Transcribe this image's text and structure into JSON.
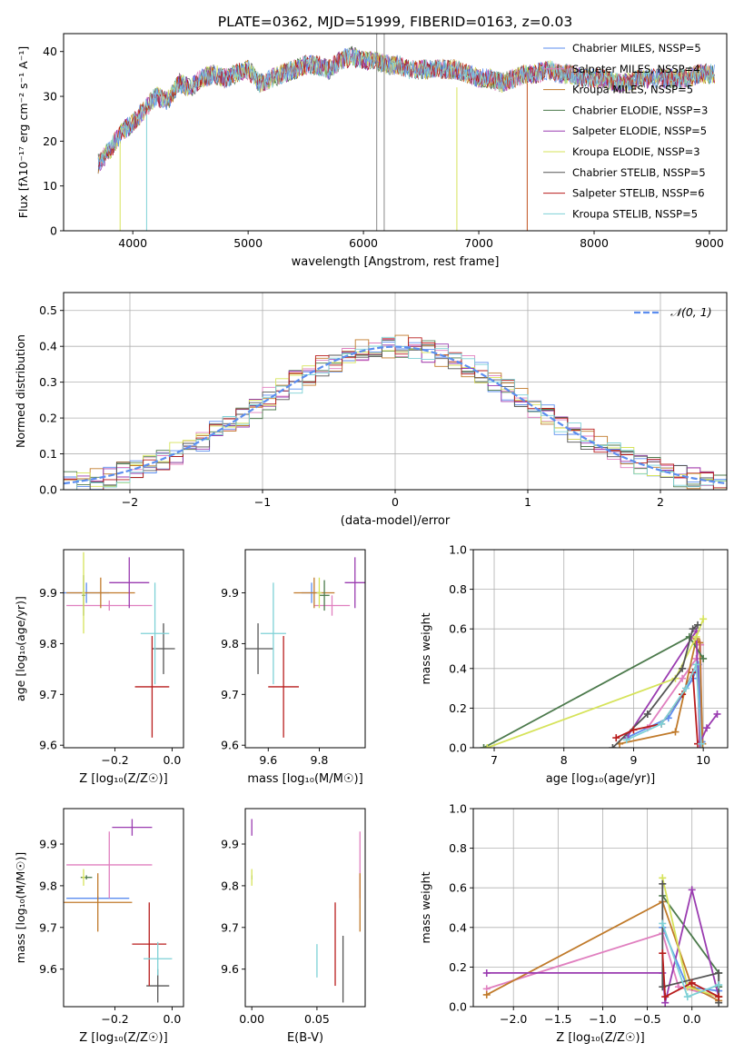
{
  "title": "PLATE=0362, MJD=51999, FIBERID=0163, z=0.03",
  "colors": [
    "#5b8def",
    "#e07fbf",
    "#c07a2a",
    "#4c7a4c",
    "#9a3bb0",
    "#d6e35a",
    "#555555",
    "#b81d1d",
    "#7ed1d6"
  ],
  "chart_data": [
    {
      "id": "spectrum",
      "type": "line",
      "xlabel": "wavelength [Angstrom, rest frame]",
      "ylabel": "Flux [fλ10⁻¹⁷ erg cm⁻² s⁻¹ A⁻¹]",
      "xlim": [
        3400,
        9150
      ],
      "ylim": [
        0,
        44
      ],
      "xticks": [
        4000,
        5000,
        6000,
        7000,
        8000,
        9000
      ],
      "yticks": [
        0,
        10,
        20,
        30,
        40
      ],
      "grid": false,
      "legend": "top-right",
      "legend_entries": [
        "Chabrier MILES, NSSP=5",
        "Salpeter MILES, NSSP=4",
        "Kroupa MILES, NSSP=5",
        "Chabrier ELODIE, NSSP=3",
        "Salpeter ELODIE, NSSP=5",
        "Kroupa ELODIE, NSSP=3",
        "Chabrier STELIB, NSSP=5",
        "Salpeter STELIB, NSSP=6",
        "Kroupa STELIB, NSSP=5"
      ],
      "x": [
        3700,
        3800,
        3900,
        4000,
        4100,
        4200,
        4300,
        4400,
        4500,
        4600,
        4700,
        4800,
        4900,
        5000,
        5100,
        5200,
        5300,
        5400,
        5500,
        5600,
        5700,
        5800,
        5900,
        6000,
        6100,
        6200,
        6300,
        6400,
        6500,
        6600,
        6700,
        6800,
        6900,
        7000,
        7100,
        7200,
        7300,
        7400,
        7500,
        7600,
        7700,
        7800,
        7900,
        8000,
        8100,
        8200,
        8300,
        8400,
        8500,
        8600,
        8700,
        8800,
        8900,
        9000,
        9050
      ],
      "y": [
        15,
        18,
        22,
        24,
        27,
        30,
        29,
        33,
        32,
        34,
        35,
        34,
        35,
        36,
        33,
        34,
        35,
        36,
        37,
        37,
        36,
        38,
        39,
        38,
        38,
        37,
        37,
        36,
        36,
        36,
        36,
        36,
        35,
        34,
        34,
        33,
        34,
        35,
        35,
        36,
        35,
        35,
        34,
        34,
        34,
        33,
        33,
        34,
        34,
        34,
        34,
        34,
        35,
        35,
        35
      ]
    },
    {
      "id": "residuals",
      "type": "bar",
      "xlabel": "(data-model)/error",
      "ylabel": "Normed distribution",
      "xlim": [
        -2.5,
        2.5
      ],
      "ylim": [
        0,
        0.55
      ],
      "xticks": [
        -2,
        -1,
        0,
        1,
        2
      ],
      "yticks": [
        0.0,
        0.1,
        0.2,
        0.3,
        0.4,
        0.5
      ],
      "grid": true,
      "legend": "top-right",
      "legend_entries": [
        "𝒩(0, 1)"
      ],
      "bin_width": 0.1,
      "reference_curve": "normal(0,1)"
    },
    {
      "id": "age-vs-z",
      "type": "scatter",
      "xlabel": "Z [log₁₀(Z/Z☉)]",
      "ylabel": "age  [log₁₀(age/yr)]",
      "xlim": [
        -0.38,
        0.04
      ],
      "ylim": [
        9.595,
        9.985
      ],
      "xticks": [
        -0.2,
        0.0
      ],
      "yticks": [
        9.6,
        9.7,
        9.8,
        9.9
      ],
      "grid": false,
      "points": [
        {
          "c": 0,
          "x": -0.3,
          "y": 9.9,
          "xerr": 0.08,
          "yerr": 0.02
        },
        {
          "c": 1,
          "x": -0.22,
          "y": 9.875,
          "xerr": 0.15,
          "yerr": 0.01
        },
        {
          "c": 2,
          "x": -0.25,
          "y": 9.9,
          "xerr": 0.12,
          "yerr": 0.03
        },
        {
          "c": 3,
          "x": -0.31,
          "y": 9.895,
          "xerr": 0.005,
          "yerr": 0.04
        },
        {
          "c": 4,
          "x": -0.15,
          "y": 9.92,
          "xerr": 0.07,
          "yerr": 0.05
        },
        {
          "c": 5,
          "x": -0.31,
          "y": 9.9,
          "xerr": 0.005,
          "yerr": 0.08
        },
        {
          "c": 6,
          "x": -0.03,
          "y": 9.79,
          "xerr": 0.04,
          "yerr": 0.05
        },
        {
          "c": 7,
          "x": -0.07,
          "y": 9.715,
          "xerr": 0.06,
          "yerr": 0.1
        },
        {
          "c": 8,
          "x": -0.06,
          "y": 9.82,
          "xerr": 0.05,
          "yerr": 0.1
        }
      ]
    },
    {
      "id": "age-vs-mass",
      "type": "scatter",
      "xlabel": "mass [log₁₀(M/M☉)]",
      "ylabel": "",
      "xlim": [
        9.51,
        9.98
      ],
      "ylim": [
        9.595,
        9.985
      ],
      "xticks": [
        9.6,
        9.8
      ],
      "yticks": [
        9.6,
        9.7,
        9.8,
        9.9
      ],
      "grid": false,
      "points": [
        {
          "c": 0,
          "x": 9.77,
          "y": 9.9,
          "xerr": 0.04,
          "yerr": 0.02
        },
        {
          "c": 1,
          "x": 9.85,
          "y": 9.875,
          "xerr": 0.07,
          "yerr": 0.02
        },
        {
          "c": 2,
          "x": 9.78,
          "y": 9.9,
          "xerr": 0.08,
          "yerr": 0.03
        },
        {
          "c": 3,
          "x": 9.82,
          "y": 9.895,
          "xerr": 0.02,
          "yerr": 0.03
        },
        {
          "c": 4,
          "x": 9.94,
          "y": 9.92,
          "xerr": 0.04,
          "yerr": 0.05
        },
        {
          "c": 5,
          "x": 9.8,
          "y": 9.9,
          "xerr": 0.01,
          "yerr": 0.03
        },
        {
          "c": 6,
          "x": 9.56,
          "y": 9.79,
          "xerr": 0.06,
          "yerr": 0.05
        },
        {
          "c": 7,
          "x": 9.66,
          "y": 9.715,
          "xerr": 0.06,
          "yerr": 0.1
        },
        {
          "c": 8,
          "x": 9.62,
          "y": 9.82,
          "xerr": 0.05,
          "yerr": 0.1
        }
      ]
    },
    {
      "id": "weight-vs-age",
      "type": "line",
      "xlabel": "age  [log₁₀(age/yr)]",
      "ylabel": "mass weight",
      "xlim": [
        6.7,
        10.35
      ],
      "ylim": [
        0,
        1.0
      ],
      "xticks": [
        7,
        8,
        9,
        10
      ],
      "yticks": [
        0.0,
        0.2,
        0.4,
        0.6,
        0.8,
        1.0
      ],
      "grid": true,
      "series": [
        {
          "c": 0,
          "x": [
            8.9,
            9.5,
            9.85,
            9.93,
            9.98
          ],
          "y": [
            0.05,
            0.15,
            0.35,
            0.42,
            0.03
          ]
        },
        {
          "c": 1,
          "x": [
            9.2,
            9.7,
            9.9,
            9.96,
            9.98
          ],
          "y": [
            0.1,
            0.35,
            0.45,
            0.52,
            0.02
          ]
        },
        {
          "c": 2,
          "x": [
            8.8,
            9.6,
            9.9,
            9.95,
            9.99
          ],
          "y": [
            0.02,
            0.08,
            0.55,
            0.53,
            0.02
          ]
        },
        {
          "c": 3,
          "x": [
            6.85,
            9.8,
            10.0
          ],
          "y": [
            0.0,
            0.56,
            0.45
          ]
        },
        {
          "c": 4,
          "x": [
            8.9,
            9.9,
            9.95,
            10.05,
            10.2
          ],
          "y": [
            0.05,
            0.59,
            0.02,
            0.1,
            0.17
          ]
        },
        {
          "c": 5,
          "x": [
            6.9,
            9.6,
            9.9,
            10.0
          ],
          "y": [
            0.0,
            0.35,
            0.56,
            0.65
          ]
        },
        {
          "c": 6,
          "x": [
            8.7,
            9.2,
            9.7,
            9.85,
            9.92
          ],
          "y": [
            0.0,
            0.17,
            0.4,
            0.6,
            0.62
          ]
        },
        {
          "c": 7,
          "x": [
            8.75,
            9.0,
            9.4,
            9.7,
            9.85,
            9.92
          ],
          "y": [
            0.05,
            0.09,
            0.12,
            0.27,
            0.38,
            0.02
          ]
        },
        {
          "c": 8,
          "x": [
            8.9,
            9.4,
            9.75,
            9.9,
            9.97
          ],
          "y": [
            0.04,
            0.12,
            0.3,
            0.42,
            0.02
          ]
        }
      ]
    },
    {
      "id": "mass-vs-z",
      "type": "scatter",
      "xlabel": "Z [log₁₀(Z/Z☉)]",
      "ylabel": "mass [log₁₀(M/M☉)]",
      "xlim": [
        -0.38,
        0.04
      ],
      "ylim": [
        9.51,
        9.985
      ],
      "xticks": [
        -0.2,
        0.0
      ],
      "yticks": [
        9.6,
        9.7,
        9.8,
        9.9
      ],
      "grid": false,
      "points": [
        {
          "c": 0,
          "x": -0.26,
          "y": 9.77,
          "xerr": 0.11,
          "yerr": 0.005
        },
        {
          "c": 1,
          "x": -0.22,
          "y": 9.85,
          "xerr": 0.15,
          "yerr": 0.08
        },
        {
          "c": 2,
          "x": -0.26,
          "y": 9.76,
          "xerr": 0.12,
          "yerr": 0.07
        },
        {
          "c": 3,
          "x": -0.3,
          "y": 9.82,
          "xerr": 0.02,
          "yerr": 0.005
        },
        {
          "c": 4,
          "x": -0.14,
          "y": 9.94,
          "xerr": 0.07,
          "yerr": 0.02
        },
        {
          "c": 5,
          "x": -0.31,
          "y": 9.82,
          "xerr": 0.005,
          "yerr": 0.02
        },
        {
          "c": 6,
          "x": -0.05,
          "y": 9.56,
          "xerr": 0.04,
          "yerr": 0.04
        },
        {
          "c": 7,
          "x": -0.08,
          "y": 9.66,
          "xerr": 0.06,
          "yerr": 0.1
        },
        {
          "c": 8,
          "x": -0.05,
          "y": 9.625,
          "xerr": 0.05,
          "yerr": 0.04
        }
      ]
    },
    {
      "id": "mass-vs-ebv",
      "type": "scatter",
      "xlabel": "E(B-V)",
      "ylabel": "",
      "xlim": [
        -0.005,
        0.087
      ],
      "ylim": [
        9.51,
        9.985
      ],
      "xticks": [
        0.0,
        0.05
      ],
      "yticks": [
        9.6,
        9.7,
        9.8,
        9.9
      ],
      "grid": false,
      "points": [
        {
          "c": 1,
          "x": 0.083,
          "y": 9.85,
          "xerr": 0,
          "yerr": 0.08
        },
        {
          "c": 2,
          "x": 0.083,
          "y": 9.76,
          "xerr": 0,
          "yerr": 0.07
        },
        {
          "c": 3,
          "x": 0.0,
          "y": 9.82,
          "xerr": 0,
          "yerr": 0.005
        },
        {
          "c": 4,
          "x": 0.0,
          "y": 9.94,
          "xerr": 0,
          "yerr": 0.02
        },
        {
          "c": 5,
          "x": 0.0,
          "y": 9.82,
          "xerr": 0,
          "yerr": 0.02
        },
        {
          "c": 6,
          "x": 0.07,
          "y": 9.6,
          "xerr": 0,
          "yerr": 0.08
        },
        {
          "c": 7,
          "x": 0.064,
          "y": 9.66,
          "xerr": 0,
          "yerr": 0.1
        },
        {
          "c": 8,
          "x": 0.05,
          "y": 9.62,
          "xerr": 0,
          "yerr": 0.04
        }
      ]
    },
    {
      "id": "weight-vs-z",
      "type": "line",
      "xlabel": "Z [log₁₀(Z/Z☉)]",
      "ylabel": "mass weight",
      "xlim": [
        -2.45,
        0.4
      ],
      "ylim": [
        0,
        1.0
      ],
      "xticks": [
        -2.0,
        -1.5,
        -1.0,
        -0.5,
        0.0
      ],
      "yticks": [
        0.0,
        0.2,
        0.4,
        0.6,
        0.8,
        1.0
      ],
      "grid": true,
      "series": [
        {
          "c": 0,
          "x": [
            -0.33,
            -0.05,
            0.3
          ],
          "y": [
            0.4,
            0.1,
            0.08
          ]
        },
        {
          "c": 1,
          "x": [
            -2.3,
            -0.33,
            -0.15,
            0.3
          ],
          "y": [
            0.09,
            0.37,
            0.1,
            0.05
          ]
        },
        {
          "c": 2,
          "x": [
            -2.3,
            -0.33,
            0.0,
            0.3
          ],
          "y": [
            0.06,
            0.53,
            0.1,
            0.03
          ]
        },
        {
          "c": 3,
          "x": [
            -0.33,
            0.3,
            0.3
          ],
          "y": [
            0.56,
            0.17,
            0.1
          ]
        },
        {
          "c": 4,
          "x": [
            -2.3,
            -0.33,
            -0.3,
            0.0,
            0.3
          ],
          "y": [
            0.17,
            0.17,
            0.02,
            0.59,
            0.05
          ]
        },
        {
          "c": 5,
          "x": [
            -0.33,
            -0.05,
            0.3
          ],
          "y": [
            0.65,
            0.1,
            0.05
          ]
        },
        {
          "c": 6,
          "x": [
            -0.33,
            -0.33,
            0.3,
            0.3
          ],
          "y": [
            0.62,
            0.1,
            0.17,
            0.02
          ]
        },
        {
          "c": 7,
          "x": [
            -0.33,
            -0.3,
            0.0,
            0.3
          ],
          "y": [
            0.27,
            0.05,
            0.12,
            0.05
          ]
        },
        {
          "c": 8,
          "x": [
            -0.33,
            -0.05,
            0.3
          ],
          "y": [
            0.42,
            0.05,
            0.11
          ]
        }
      ]
    }
  ]
}
